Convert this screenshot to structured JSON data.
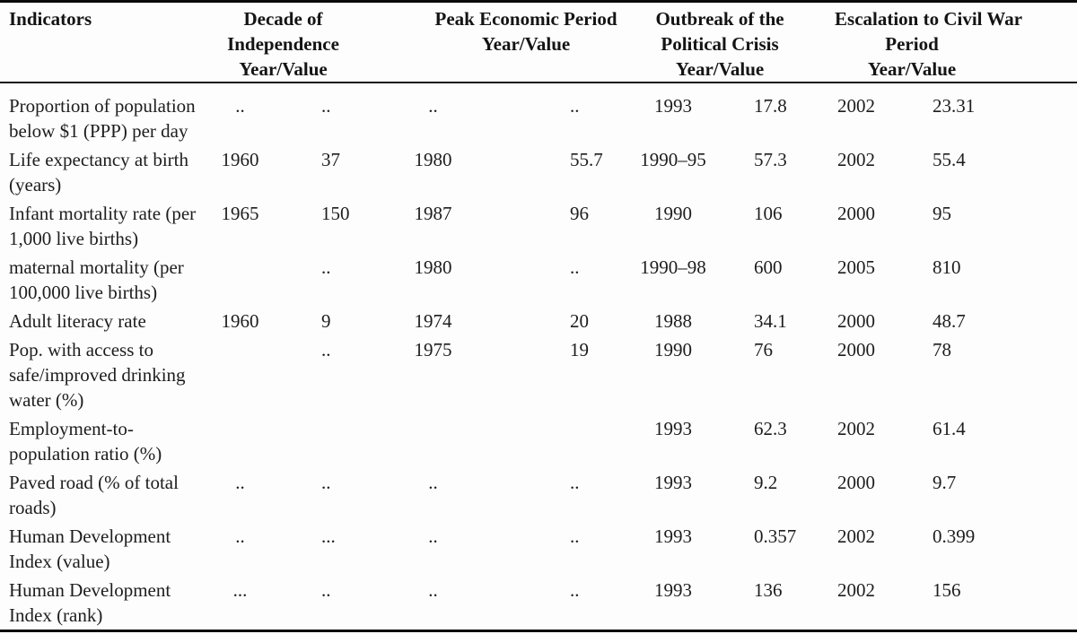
{
  "table": {
    "columns": {
      "indicator_header": "Indicators",
      "groups": [
        {
          "label": "Decade of\nIndependence\nYear/Value"
        },
        {
          "label": "Peak Economic Period\nYear/Value"
        },
        {
          "label": "Outbreak of the\nPolitical Crisis\nYear/Value"
        },
        {
          "label": "Escalation to Civil War\nPeriod\nYear/Value"
        }
      ],
      "subcolumns": [
        "Year",
        "Value"
      ]
    },
    "missing_value_marker": "..",
    "rows": [
      {
        "cells": [
          "Proportion of population\nbelow $1 (PPP) per day",
          "..",
          "..",
          "..",
          "..",
          "1993",
          "17.8",
          "2002",
          "23.31"
        ]
      },
      {
        "cells": [
          "Life expectancy at birth\n(years)",
          "1960",
          "37",
          "1980",
          "55.7",
          "1990–95",
          "57.3",
          "2002",
          "55.4"
        ]
      },
      {
        "cells": [
          "Infant mortality rate (per\n1,000 live births)",
          "1965",
          "150",
          "1987",
          "96",
          "1990",
          "106",
          "2000",
          "95"
        ]
      },
      {
        "cells": [
          "maternal mortality (per\n100,000 live births)",
          "",
          "..",
          "1980",
          "..",
          "1990–98",
          "600",
          "2005",
          "810"
        ]
      },
      {
        "cells": [
          "Adult literacy rate",
          "1960",
          "9",
          "1974",
          "20",
          "1988",
          "34.1",
          "2000",
          "48.7"
        ]
      },
      {
        "cells": [
          "Pop. with access to\nsafe/improved drinking\nwater (%)",
          "",
          "..",
          "1975",
          "19",
          "1990",
          "76",
          "2000",
          "78"
        ]
      },
      {
        "cells": [
          "Employment-to-\npopulation ratio (%)",
          "",
          "",
          "",
          "",
          "1993",
          "62.3",
          "2002",
          "61.4"
        ]
      },
      {
        "cells": [
          "Paved road (% of total\nroads)",
          "..",
          "..",
          "..",
          "..",
          "1993",
          "9.2",
          "2000",
          "9.7"
        ]
      },
      {
        "cells": [
          "Human Development\nIndex (value)",
          "..",
          "...",
          "..",
          "..",
          "1993",
          "0.357",
          "2002",
          "0.399"
        ]
      },
      {
        "cells": [
          "Human Development\nIndex (rank)",
          "...",
          "..",
          "..",
          "..",
          "1993",
          "136",
          "2002",
          "156"
        ]
      }
    ]
  },
  "colors": {
    "text": "#1d1d1d",
    "rule": "#0a0a0a",
    "background": "#fdfdfd"
  }
}
